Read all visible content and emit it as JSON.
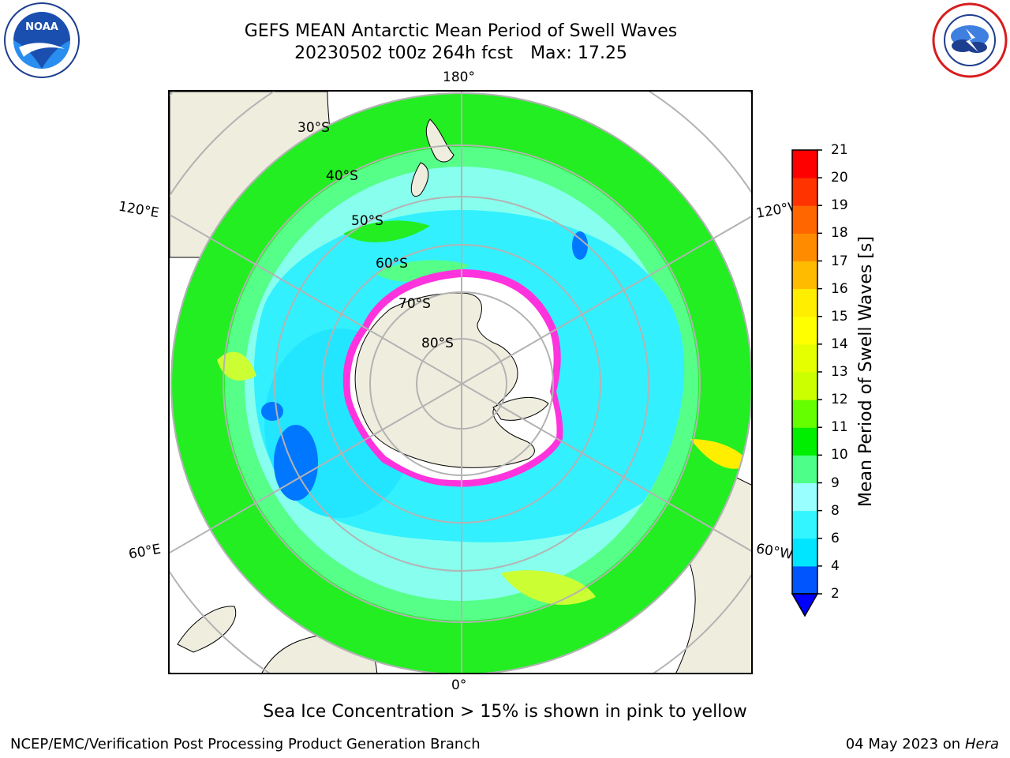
{
  "header": {
    "title_line1": "GEFS MEAN Antarctic Mean Period of Swell Waves",
    "title_line2_run": "20230502 t00z 264h fcst",
    "title_line2_max": "Max: 17.25"
  },
  "logos": {
    "left": {
      "icon": "noaa-logo-icon",
      "text": "NOAA"
    },
    "right": {
      "icon": "nws-logo-icon"
    }
  },
  "map": {
    "projection": "south-polar-stereographic",
    "lon_labels": [
      "180°",
      "120°E",
      "120°W",
      "60°E",
      "60°W",
      "0°"
    ],
    "lat_labels": [
      "30°S",
      "40°S",
      "50°S",
      "60°S",
      "70°S",
      "80°S"
    ],
    "colors": {
      "land": "#efedde",
      "ice_free_open": "#ffffff",
      "sea_ice_edge": "#ff33dd",
      "gridline": "#b3b3b3"
    }
  },
  "colorbar": {
    "label": "Mean Period of Swell Waves [s]",
    "ticks": [
      "2",
      "4",
      "6",
      "8",
      "9",
      "10",
      "11",
      "12",
      "13",
      "14",
      "15",
      "16",
      "17",
      "18",
      "19",
      "20",
      "21"
    ],
    "colors": [
      "#0055ff",
      "#00e5ff",
      "#33f5ff",
      "#99ffff",
      "#4dff88",
      "#00ee00",
      "#66ff00",
      "#ccff00",
      "#e5ff00",
      "#ffff00",
      "#ffee00",
      "#ffbb00",
      "#ff8c00",
      "#ff6600",
      "#ff3300",
      "#ff0000"
    ],
    "under_color": "#0000ff"
  },
  "footer": {
    "note": "Sea Ice Concentration > 15% is shown in pink to yellow",
    "branch": "NCEP/EMC/Verification Post Processing Product Generation Branch",
    "date": "04 May 2023 on",
    "machine": "Hera"
  }
}
